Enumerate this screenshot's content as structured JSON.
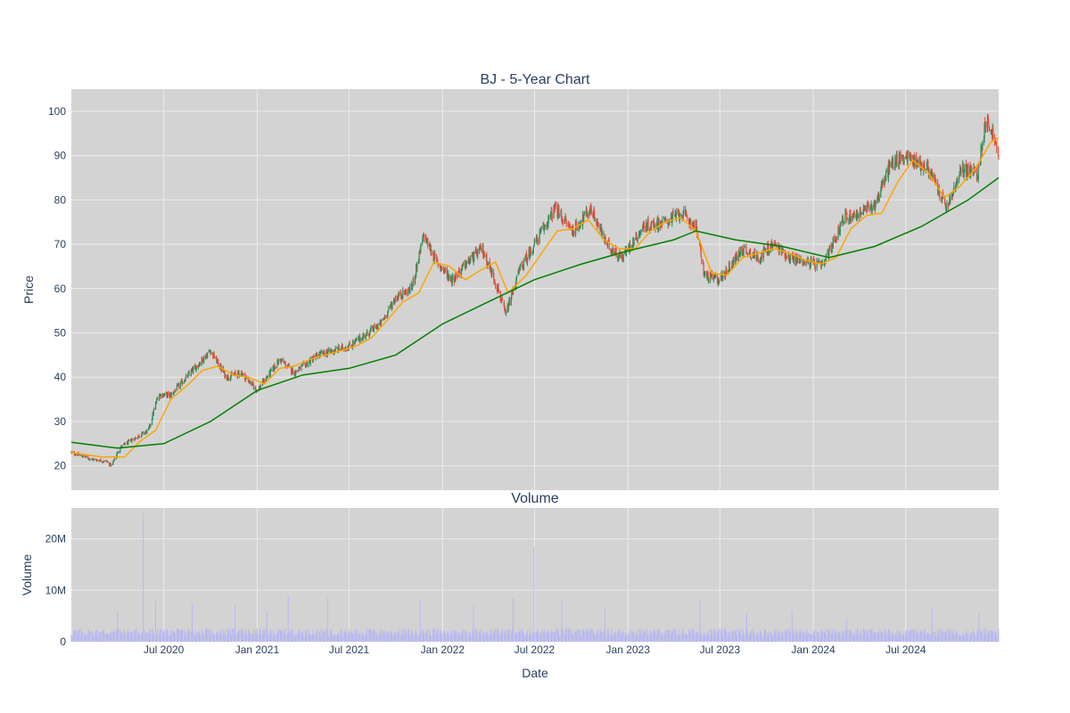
{
  "colors": {
    "panel_bg": "#d3d3d3",
    "gridline": "#ececec",
    "candle_up": "#2e8b57",
    "candle_down": "#e74c3c",
    "ma_short": "#ffa500",
    "ma_long": "#008000",
    "volume_bar": "#b8b8f0",
    "text": "#2a3f5f"
  },
  "chart_data": [
    {
      "type": "candlestick",
      "title": "BJ - 5-Year Chart",
      "xlabel": "",
      "ylabel": "Price",
      "ylim": [
        14.5,
        105
      ],
      "xlim": [
        "2020-01-01",
        "2024-12-31"
      ],
      "yticks": [
        20,
        30,
        40,
        50,
        60,
        70,
        80,
        90,
        100
      ],
      "grid": true,
      "series": [
        {
          "kind": "candlestick",
          "approx_close": [
            [
              "2020-01-01",
              23
            ],
            [
              "2020-02-10",
              21.5
            ],
            [
              "2020-03-10",
              21
            ],
            [
              "2020-03-20",
              20
            ],
            [
              "2020-04-05",
              24
            ],
            [
              "2020-05-01",
              26
            ],
            [
              "2020-06-01",
              28
            ],
            [
              "2020-06-20",
              36
            ],
            [
              "2020-07-15",
              36
            ],
            [
              "2020-08-15",
              40
            ],
            [
              "2020-10-01",
              46
            ],
            [
              "2020-11-01",
              40
            ],
            [
              "2020-12-01",
              41
            ],
            [
              "2021-01-01",
              37
            ],
            [
              "2021-02-15",
              44
            ],
            [
              "2021-03-15",
              41
            ],
            [
              "2021-05-01",
              45
            ],
            [
              "2021-06-01",
              46
            ],
            [
              "2021-07-01",
              47
            ],
            [
              "2021-09-01",
              52
            ],
            [
              "2021-10-01",
              58
            ],
            [
              "2021-11-01",
              60
            ],
            [
              "2021-11-25",
              72
            ],
            [
              "2021-12-20",
              66
            ],
            [
              "2022-01-20",
              62
            ],
            [
              "2022-02-20",
              66
            ],
            [
              "2022-03-20",
              69
            ],
            [
              "2022-04-20",
              60
            ],
            [
              "2022-05-05",
              54
            ],
            [
              "2022-06-01",
              64
            ],
            [
              "2022-07-01",
              70
            ],
            [
              "2022-08-10",
              78
            ],
            [
              "2022-09-15",
              73
            ],
            [
              "2022-10-20",
              78
            ],
            [
              "2022-11-20",
              70
            ],
            [
              "2022-12-20",
              67
            ],
            [
              "2023-02-01",
              74
            ],
            [
              "2023-03-15",
              75
            ],
            [
              "2023-04-15",
              77
            ],
            [
              "2023-05-15",
              74
            ],
            [
              "2023-06-01",
              63
            ],
            [
              "2023-07-01",
              62
            ],
            [
              "2023-08-15",
              69
            ],
            [
              "2023-09-15",
              67
            ],
            [
              "2023-10-15",
              70
            ],
            [
              "2023-11-15",
              67
            ],
            [
              "2023-12-20",
              66
            ],
            [
              "2024-01-20",
              65
            ],
            [
              "2024-03-01",
              76
            ],
            [
              "2024-04-01",
              77
            ],
            [
              "2024-05-01",
              79
            ],
            [
              "2024-06-01",
              88
            ],
            [
              "2024-07-01",
              90
            ],
            [
              "2024-08-15",
              87
            ],
            [
              "2024-09-20",
              78
            ],
            [
              "2024-10-20",
              87
            ],
            [
              "2024-11-20",
              86
            ],
            [
              "2024-12-05",
              98
            ],
            [
              "2024-12-20",
              95
            ],
            [
              "2024-12-31",
              89
            ]
          ]
        },
        {
          "kind": "line",
          "points": [
            [
              "2020-01-01",
              23
            ],
            [
              "2020-03-01",
              22
            ],
            [
              "2020-04-15",
              22
            ],
            [
              "2020-05-15",
              25.5
            ],
            [
              "2020-06-15",
              28
            ],
            [
              "2020-07-15",
              35
            ],
            [
              "2020-08-15",
              38
            ],
            [
              "2020-09-15",
              41.5
            ],
            [
              "2020-10-15",
              42.5
            ],
            [
              "2020-11-15",
              40.5
            ],
            [
              "2020-12-15",
              40
            ],
            [
              "2021-01-15",
              38.5
            ],
            [
              "2021-02-15",
              42
            ],
            [
              "2021-03-15",
              42.5
            ],
            [
              "2021-04-15",
              44
            ],
            [
              "2021-05-15",
              45
            ],
            [
              "2021-06-15",
              46
            ],
            [
              "2021-07-15",
              47
            ],
            [
              "2021-08-15",
              49
            ],
            [
              "2021-09-15",
              53
            ],
            [
              "2021-10-15",
              57
            ],
            [
              "2021-11-15",
              59
            ],
            [
              "2021-12-15",
              66
            ],
            [
              "2022-01-15",
              65
            ],
            [
              "2022-02-15",
              62
            ],
            [
              "2022-03-15",
              64
            ],
            [
              "2022-04-15",
              66
            ],
            [
              "2022-05-10",
              59
            ],
            [
              "2022-06-15",
              63
            ],
            [
              "2022-07-15",
              68
            ],
            [
              "2022-08-15",
              73
            ],
            [
              "2022-09-15",
              73.5
            ],
            [
              "2022-10-15",
              75.5
            ],
            [
              "2022-11-15",
              71
            ],
            [
              "2022-12-15",
              69
            ],
            [
              "2023-01-15",
              69
            ],
            [
              "2023-02-15",
              73
            ],
            [
              "2023-03-15",
              75
            ],
            [
              "2023-04-15",
              76
            ],
            [
              "2023-05-15",
              73
            ],
            [
              "2023-06-15",
              63.5
            ],
            [
              "2023-07-15",
              63
            ],
            [
              "2023-08-15",
              67
            ],
            [
              "2023-09-15",
              68
            ],
            [
              "2023-10-15",
              69
            ],
            [
              "2023-11-15",
              68
            ],
            [
              "2023-12-15",
              66.5
            ],
            [
              "2024-01-15",
              65.5
            ],
            [
              "2024-02-15",
              67
            ],
            [
              "2024-03-15",
              73.5
            ],
            [
              "2024-04-15",
              76.5
            ],
            [
              "2024-05-15",
              77
            ],
            [
              "2024-06-15",
              84
            ],
            [
              "2024-07-15",
              89
            ],
            [
              "2024-08-15",
              86
            ],
            [
              "2024-09-15",
              80.5
            ],
            [
              "2024-10-15",
              83
            ],
            [
              "2024-11-15",
              87
            ],
            [
              "2024-12-15",
              93
            ],
            [
              "2024-12-31",
              94
            ]
          ]
        },
        {
          "kind": "line",
          "points": [
            [
              "2020-01-01",
              25.3
            ],
            [
              "2020-04-01",
              24
            ],
            [
              "2020-07-01",
              25
            ],
            [
              "2020-10-01",
              30
            ],
            [
              "2021-01-01",
              37
            ],
            [
              "2021-04-01",
              40.5
            ],
            [
              "2021-07-01",
              42
            ],
            [
              "2021-10-01",
              45
            ],
            [
              "2022-01-01",
              52
            ],
            [
              "2022-04-01",
              57
            ],
            [
              "2022-07-01",
              62
            ],
            [
              "2022-10-01",
              65.5
            ],
            [
              "2023-01-01",
              68.5
            ],
            [
              "2023-04-01",
              71
            ],
            [
              "2023-05-15",
              73
            ],
            [
              "2023-08-01",
              71
            ],
            [
              "2023-11-01",
              69.5
            ],
            [
              "2024-02-01",
              67
            ],
            [
              "2024-05-01",
              69.5
            ],
            [
              "2024-08-01",
              74
            ],
            [
              "2024-11-01",
              80
            ],
            [
              "2024-12-31",
              85
            ]
          ]
        }
      ]
    },
    {
      "type": "bar",
      "title": "Volume",
      "xlabel": "Date",
      "ylabel": "Volume",
      "ylim": [
        0,
        26000000
      ],
      "xlim": [
        "2020-01-01",
        "2024-12-31"
      ],
      "yticks": [
        0,
        10000000,
        20000000
      ],
      "ytick_labels": [
        "0",
        "10M",
        "20M"
      ],
      "xtick_labels": [
        "Jul 2020",
        "Jan 2021",
        "Jul 2021",
        "Jan 2022",
        "Jul 2022",
        "Jan 2023",
        "Jul 2023",
        "Jan 2024",
        "Jul 2024"
      ],
      "xtick_dates": [
        "2020-07-01",
        "2021-01-01",
        "2021-07-01",
        "2022-01-01",
        "2022-07-01",
        "2023-01-01",
        "2023-07-01",
        "2024-01-01",
        "2024-07-01"
      ],
      "baseline_volume": 1800000,
      "spikes": [
        [
          "2020-03-15",
          5500000
        ],
        [
          "2020-04-01",
          6000000
        ],
        [
          "2020-05-22",
          25000000
        ],
        [
          "2020-06-15",
          8000000
        ],
        [
          "2020-08-26",
          7500000
        ],
        [
          "2020-11-18",
          7200000
        ],
        [
          "2021-01-20",
          6000000
        ],
        [
          "2021-03-03",
          9000000
        ],
        [
          "2021-05-20",
          8500000
        ],
        [
          "2021-11-18",
          8000000
        ],
        [
          "2022-03-03",
          7000000
        ],
        [
          "2022-05-20",
          8500000
        ],
        [
          "2022-06-30",
          18500000
        ],
        [
          "2022-08-24",
          8000000
        ],
        [
          "2022-11-17",
          6500000
        ],
        [
          "2023-05-23",
          8000000
        ],
        [
          "2023-08-23",
          5500000
        ],
        [
          "2023-11-20",
          6000000
        ],
        [
          "2024-03-07",
          4500000
        ],
        [
          "2024-08-22",
          6500000
        ],
        [
          "2024-11-22",
          5500000
        ]
      ]
    }
  ]
}
